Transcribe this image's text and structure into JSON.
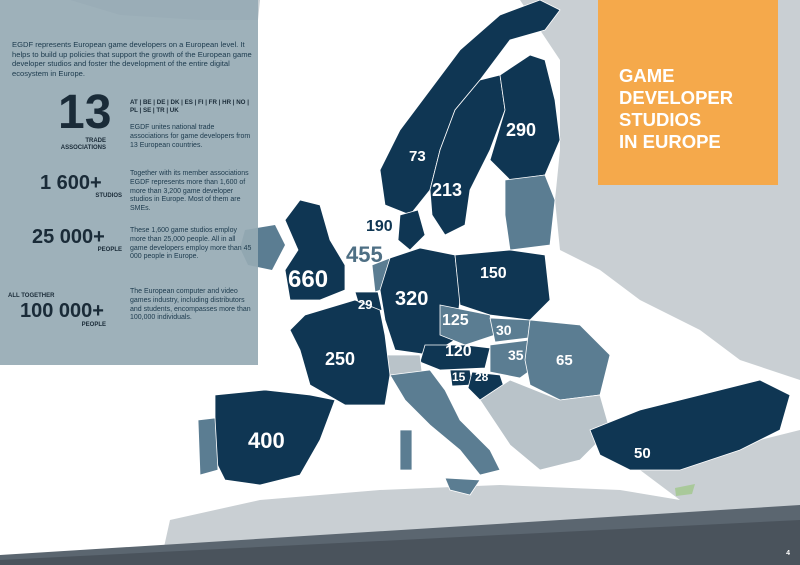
{
  "intro_text": "EGDF represents European game developers on a European level. It helps to build up policies that support the growth of the European game developer studios and foster the development of the entire digital ecosystem in Europe.",
  "stats": [
    {
      "value": "13",
      "label": "TRADE ASSOCIATIONS",
      "countries": "AT | BE | DE | DK | ES | FI | FR | HR | NO | PL | SE | TR | UK",
      "text": "EGDF unites national trade associations for game developers from 13 European countries."
    },
    {
      "value": "1 600+",
      "label": "STUDIOS",
      "text": "Together with its member associations EGDF represents more than 1,600 of more than 3,200 game developer studios in Europe. Most of them are SMEs."
    },
    {
      "value": "25 000+",
      "label": "PEOPLE",
      "text": "These 1,600 game studios employ more than 25,000 people. All in all game developers employ more than 45 000 people in Europe."
    },
    {
      "value": "100 000+",
      "prefix": "ALL TOGETHER",
      "label": "PEOPLE",
      "text": "The European computer and video games industry, including distributors and students, encompasses more than 100,000 individuals."
    }
  ],
  "title": [
    "GAME",
    "DEVELOPER",
    "STUDIOS",
    "IN EUROPE"
  ],
  "country_numbers": {
    "finland": "290",
    "norway": "73",
    "sweden": "213",
    "denmark": "190",
    "netherlands": "455",
    "uk": "660",
    "belgium": "29",
    "germany": "320",
    "poland": "150",
    "czech": "125",
    "slovakia": "30",
    "austria": "120",
    "hungary": "35",
    "romania": "65",
    "france": "250",
    "slovenia": "15",
    "croatia": "28",
    "spain": "400",
    "turkey": "50"
  },
  "colors": {
    "dark_country": "#0f3653",
    "mid_country": "#5b7d92",
    "light_country": "#b9c3c9",
    "sea": "#ffffff",
    "panel": "#96aab4",
    "orange": "#f5a94b"
  },
  "page_number": "4"
}
